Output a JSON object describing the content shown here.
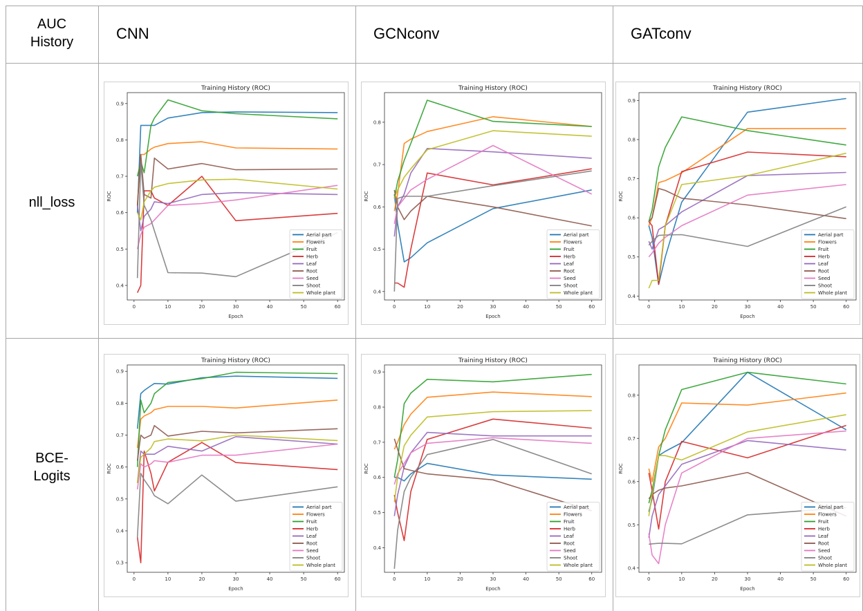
{
  "table": {
    "corner_label_line1": "AUC",
    "corner_label_line2": "History",
    "columns": [
      "CNN",
      "GCNconv",
      "GATconv"
    ],
    "rows": [
      "nll_loss",
      "BCE-\nLogits"
    ],
    "row_line_1": [
      "nll_loss",
      "BCE-"
    ],
    "row_line_2": [
      "",
      "Logits"
    ]
  },
  "legend_colors": {
    "Aerial part": "#1f77b4",
    "Flowers": "#ff7f0e",
    "Fruit": "#2ca02c",
    "Herb": "#d62728",
    "Leaf": "#9467bd",
    "Root": "#8c564b",
    "Seed": "#e377c2",
    "Shoot": "#7f7f7f",
    "Whole plant": "#bcbd22"
  },
  "chart_data": [
    {
      "type": "line",
      "panel": "CNN / nll_loss",
      "title": "Training History (ROC)",
      "xlabel": "Epoch",
      "ylabel": "ROC",
      "x": [
        1,
        2,
        3,
        5,
        6,
        10,
        20,
        30,
        60
      ],
      "xticks": [
        0,
        10,
        20,
        30,
        40,
        50,
        60
      ],
      "yticks": [
        0.4,
        0.5,
        0.6,
        0.7,
        0.8,
        0.9
      ],
      "xlim": [
        -2,
        62
      ],
      "ylim": [
        0.36,
        0.93
      ],
      "legend_position": "lower right",
      "series": [
        {
          "name": "Aerial part",
          "values": [
            0.6,
            0.84,
            0.84,
            0.84,
            0.84,
            0.86,
            0.875,
            0.877,
            0.875
          ]
        },
        {
          "name": "Flowers",
          "values": [
            0.62,
            0.76,
            0.76,
            0.775,
            0.78,
            0.79,
            0.795,
            0.778,
            0.775
          ]
        },
        {
          "name": "Fruit",
          "values": [
            0.7,
            0.74,
            0.71,
            0.84,
            0.86,
            0.91,
            0.88,
            0.872,
            0.858
          ]
        },
        {
          "name": "Herb",
          "values": [
            0.38,
            0.4,
            0.66,
            0.66,
            0.64,
            0.62,
            0.7,
            0.578,
            0.598
          ]
        },
        {
          "name": "Leaf",
          "values": [
            0.62,
            0.55,
            0.59,
            0.61,
            0.63,
            0.625,
            0.65,
            0.655,
            0.65
          ]
        },
        {
          "name": "Root",
          "values": [
            0.62,
            0.76,
            0.65,
            0.64,
            0.75,
            0.72,
            0.735,
            0.718,
            0.72
          ]
        },
        {
          "name": "Seed",
          "values": [
            0.5,
            0.54,
            0.56,
            0.57,
            0.58,
            0.62,
            0.625,
            0.635,
            0.675
          ]
        },
        {
          "name": "Shoot",
          "values": [
            0.42,
            0.74,
            0.62,
            0.58,
            0.55,
            0.435,
            0.434,
            0.424,
            0.545
          ]
        },
        {
          "name": "Whole plant",
          "values": [
            0.6,
            0.58,
            0.63,
            0.66,
            0.67,
            0.68,
            0.69,
            0.692,
            0.665
          ]
        }
      ]
    },
    {
      "type": "line",
      "panel": "GCNconv / nll_loss",
      "title": "Training History (ROC)",
      "xlabel": "Epoch",
      "ylabel": "ROC",
      "x": [
        0,
        1,
        3,
        5,
        10,
        30,
        60
      ],
      "xticks": [
        0,
        10,
        20,
        30,
        40,
        50,
        60
      ],
      "yticks": [
        0.4,
        0.5,
        0.6,
        0.7,
        0.8
      ],
      "xlim": [
        -3,
        63
      ],
      "ylim": [
        0.38,
        0.87
      ],
      "legend_position": "lower right",
      "series": [
        {
          "name": "Aerial part",
          "values": [
            0.63,
            0.56,
            0.47,
            0.48,
            0.515,
            0.596,
            0.64
          ]
        },
        {
          "name": "Flowers",
          "values": [
            0.59,
            0.63,
            0.75,
            0.76,
            0.778,
            0.813,
            0.79
          ]
        },
        {
          "name": "Fruit",
          "values": [
            0.62,
            0.66,
            0.71,
            0.75,
            0.852,
            0.802,
            0.79
          ]
        },
        {
          "name": "Herb",
          "values": [
            0.42,
            0.42,
            0.41,
            0.5,
            0.68,
            0.652,
            0.69
          ]
        },
        {
          "name": "Leaf",
          "values": [
            0.53,
            0.6,
            0.63,
            0.68,
            0.738,
            0.73,
            0.715
          ]
        },
        {
          "name": "Root",
          "values": [
            0.64,
            0.6,
            0.57,
            0.59,
            0.625,
            0.6,
            0.555
          ]
        },
        {
          "name": "Seed",
          "values": [
            0.56,
            0.6,
            0.62,
            0.64,
            0.665,
            0.745,
            0.63
          ]
        },
        {
          "name": "Shoot",
          "values": [
            0.4,
            0.62,
            0.625,
            0.625,
            0.625,
            0.65,
            0.685
          ]
        },
        {
          "name": "Whole plant",
          "values": [
            0.62,
            0.64,
            0.67,
            0.69,
            0.735,
            0.78,
            0.767
          ]
        }
      ]
    },
    {
      "type": "line",
      "panel": "GATconv / nll_loss",
      "title": "Training History (ROC)",
      "xlabel": "Epoch",
      "ylabel": "ROC",
      "x": [
        0,
        1,
        3,
        5,
        10,
        30,
        60
      ],
      "xticks": [
        0,
        10,
        20,
        30,
        40,
        50,
        60
      ],
      "yticks": [
        0.4,
        0.5,
        0.6,
        0.7,
        0.8,
        0.9
      ],
      "xlim": [
        -3,
        63
      ],
      "ylim": [
        0.39,
        0.92
      ],
      "legend_position": "lower right",
      "series": [
        {
          "name": "Aerial part",
          "values": [
            0.58,
            0.55,
            0.43,
            0.5,
            0.64,
            0.87,
            0.905
          ]
        },
        {
          "name": "Flowers",
          "values": [
            0.58,
            0.6,
            0.69,
            0.695,
            0.715,
            0.828,
            0.828
          ]
        },
        {
          "name": "Fruit",
          "values": [
            0.59,
            0.62,
            0.73,
            0.78,
            0.858,
            0.823,
            0.786
          ]
        },
        {
          "name": "Herb",
          "values": [
            0.59,
            0.58,
            0.43,
            0.58,
            0.718,
            0.768,
            0.756
          ]
        },
        {
          "name": "Leaf",
          "values": [
            0.54,
            0.52,
            0.57,
            0.58,
            0.615,
            0.708,
            0.716
          ]
        },
        {
          "name": "Root",
          "values": [
            0.59,
            0.6,
            0.675,
            0.67,
            0.65,
            0.633,
            0.598
          ]
        },
        {
          "name": "Seed",
          "values": [
            0.5,
            0.51,
            0.535,
            0.55,
            0.58,
            0.658,
            0.685
          ]
        },
        {
          "name": "Shoot",
          "values": [
            0.53,
            0.54,
            0.555,
            0.556,
            0.557,
            0.527,
            0.628
          ]
        },
        {
          "name": "Whole plant",
          "values": [
            0.42,
            0.44,
            0.44,
            0.58,
            0.685,
            0.708,
            0.765
          ]
        }
      ]
    },
    {
      "type": "line",
      "panel": "CNN / BCE-Logits",
      "title": "Training History (ROC)",
      "xlabel": "Epoch",
      "ylabel": "ROC",
      "x": [
        1,
        2,
        3,
        5,
        6,
        10,
        20,
        30,
        60
      ],
      "xticks": [
        0,
        10,
        20,
        30,
        40,
        50,
        60
      ],
      "yticks": [
        0.3,
        0.4,
        0.5,
        0.6,
        0.7,
        0.8,
        0.9
      ],
      "xlim": [
        -2,
        62
      ],
      "ylim": [
        0.27,
        0.92
      ],
      "legend_position": "lower right",
      "series": [
        {
          "name": "Aerial part",
          "values": [
            0.72,
            0.83,
            0.84,
            0.855,
            0.862,
            0.86,
            0.88,
            0.885,
            0.878
          ]
        },
        {
          "name": "Flowers",
          "values": [
            0.66,
            0.75,
            0.76,
            0.77,
            0.78,
            0.79,
            0.79,
            0.785,
            0.81
          ]
        },
        {
          "name": "Fruit",
          "values": [
            0.6,
            0.81,
            0.77,
            0.8,
            0.83,
            0.865,
            0.877,
            0.897,
            0.893
          ]
        },
        {
          "name": "Herb",
          "values": [
            0.38,
            0.3,
            0.65,
            0.58,
            0.525,
            0.615,
            0.677,
            0.614,
            0.592
          ]
        },
        {
          "name": "Leaf",
          "values": [
            0.55,
            0.65,
            0.64,
            0.64,
            0.64,
            0.665,
            0.65,
            0.695,
            0.672
          ]
        },
        {
          "name": "Root",
          "values": [
            0.62,
            0.7,
            0.69,
            0.7,
            0.73,
            0.697,
            0.712,
            0.707,
            0.72
          ]
        },
        {
          "name": "Seed",
          "values": [
            0.53,
            0.61,
            0.6,
            0.61,
            0.62,
            0.615,
            0.637,
            0.637,
            0.672
          ]
        },
        {
          "name": "Shoot",
          "values": [
            0.38,
            0.58,
            0.56,
            0.53,
            0.51,
            0.485,
            0.575,
            0.493,
            0.538
          ]
        },
        {
          "name": "Whole plant",
          "values": [
            0.55,
            0.63,
            0.64,
            0.66,
            0.68,
            0.688,
            0.682,
            0.7,
            0.683
          ]
        }
      ]
    },
    {
      "type": "line",
      "panel": "GCNconv / BCE-Logits",
      "title": "Training History (ROC)",
      "xlabel": "Epoch",
      "ylabel": "ROC",
      "x": [
        0,
        1,
        3,
        5,
        10,
        30,
        60
      ],
      "xticks": [
        0,
        10,
        20,
        30,
        40,
        50,
        60
      ],
      "yticks": [
        0.4,
        0.5,
        0.6,
        0.7,
        0.8,
        0.9
      ],
      "xlim": [
        -3,
        63
      ],
      "ylim": [
        0.33,
        0.92
      ],
      "legend_position": "lower right",
      "series": [
        {
          "name": "Aerial part",
          "values": [
            0.6,
            0.6,
            0.59,
            0.61,
            0.64,
            0.607,
            0.595
          ]
        },
        {
          "name": "Flowers",
          "values": [
            0.68,
            0.7,
            0.75,
            0.78,
            0.828,
            0.843,
            0.83
          ]
        },
        {
          "name": "Fruit",
          "values": [
            0.6,
            0.65,
            0.81,
            0.84,
            0.879,
            0.872,
            0.893
          ]
        },
        {
          "name": "Herb",
          "values": [
            0.55,
            0.5,
            0.42,
            0.56,
            0.708,
            0.766,
            0.74
          ]
        },
        {
          "name": "Leaf",
          "values": [
            0.49,
            0.55,
            0.63,
            0.67,
            0.728,
            0.718,
            0.718
          ]
        },
        {
          "name": "Root",
          "values": [
            0.71,
            0.68,
            0.625,
            0.62,
            0.61,
            0.593,
            0.505
          ]
        },
        {
          "name": "Seed",
          "values": [
            0.58,
            0.61,
            0.64,
            0.67,
            0.697,
            0.713,
            0.697
          ]
        },
        {
          "name": "Shoot",
          "values": [
            0.34,
            0.45,
            0.56,
            0.6,
            0.665,
            0.708,
            0.61
          ]
        },
        {
          "name": "Whole plant",
          "values": [
            0.53,
            0.6,
            0.69,
            0.72,
            0.772,
            0.787,
            0.79
          ]
        }
      ]
    },
    {
      "type": "line",
      "panel": "GATconv / BCE-Logits",
      "title": "Training History (ROC)",
      "xlabel": "Epoch",
      "ylabel": "ROC",
      "x": [
        0,
        1,
        3,
        5,
        10,
        30,
        60
      ],
      "xticks": [
        0,
        10,
        20,
        30,
        40,
        50,
        60
      ],
      "yticks": [
        0.4,
        0.5,
        0.6,
        0.7,
        0.8
      ],
      "xlim": [
        -3,
        63
      ],
      "ylim": [
        0.39,
        0.87
      ],
      "legend_position": "lower right",
      "series": [
        {
          "name": "Aerial part",
          "values": [
            0.53,
            0.56,
            0.66,
            0.67,
            0.69,
            0.853,
            0.72
          ]
        },
        {
          "name": "Flowers",
          "values": [
            0.63,
            0.6,
            0.68,
            0.7,
            0.782,
            0.777,
            0.805
          ]
        },
        {
          "name": "Fruit",
          "values": [
            0.55,
            0.58,
            0.66,
            0.72,
            0.813,
            0.853,
            0.826
          ]
        },
        {
          "name": "Herb",
          "values": [
            0.62,
            0.58,
            0.49,
            0.6,
            0.693,
            0.655,
            0.73
          ]
        },
        {
          "name": "Leaf",
          "values": [
            0.47,
            0.52,
            0.57,
            0.59,
            0.64,
            0.695,
            0.673
          ]
        },
        {
          "name": "Root",
          "values": [
            0.56,
            0.57,
            0.58,
            0.585,
            0.59,
            0.621,
            0.52
          ]
        },
        {
          "name": "Seed",
          "values": [
            0.48,
            0.43,
            0.41,
            0.5,
            0.62,
            0.7,
            0.717
          ]
        },
        {
          "name": "Shoot",
          "values": [
            0.455,
            0.456,
            0.457,
            0.457,
            0.456,
            0.523,
            0.54
          ]
        },
        {
          "name": "Whole plant",
          "values": [
            0.52,
            0.57,
            0.66,
            0.66,
            0.65,
            0.715,
            0.755
          ]
        }
      ]
    }
  ]
}
